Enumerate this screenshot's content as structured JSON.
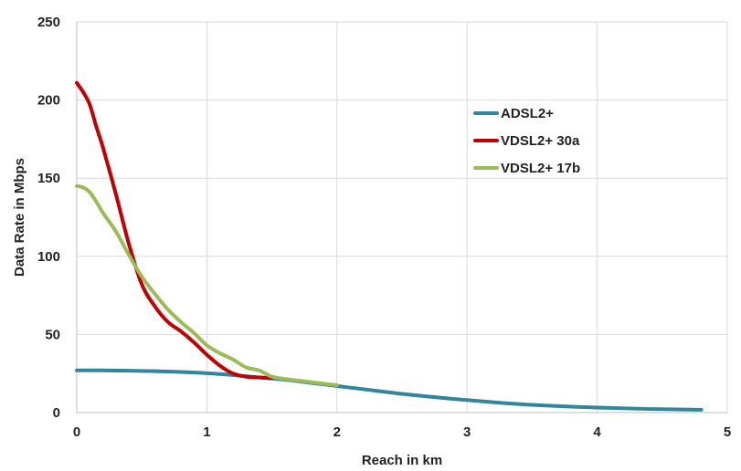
{
  "chart_data": {
    "type": "line",
    "title": "",
    "xlabel": "Reach in km",
    "ylabel": "Data Rate in Mbps",
    "xlim": [
      0,
      5
    ],
    "ylim": [
      0,
      250
    ],
    "xticks": [
      0,
      1,
      2,
      3,
      4,
      5
    ],
    "yticks": [
      0,
      50,
      100,
      150,
      200,
      250
    ],
    "grid": true,
    "legend_position": "upper right",
    "series": [
      {
        "name": "ADSL2+",
        "color": "#31859c",
        "x": [
          0,
          0.2,
          0.4,
          0.6,
          0.8,
          1.0,
          1.2,
          1.4,
          1.6,
          1.8,
          2.0,
          2.2,
          2.5,
          2.8,
          3.0,
          3.3,
          3.6,
          4.0,
          4.4,
          4.8
        ],
        "y": [
          27,
          27,
          26.8,
          26.5,
          26,
          25.2,
          24,
          22.5,
          21,
          19,
          17,
          15,
          12,
          9.5,
          8,
          6,
          4.5,
          3.2,
          2.3,
          1.8
        ]
      },
      {
        "name": "VDSL2+ 30a",
        "color": "#c00000",
        "x": [
          0,
          0.05,
          0.1,
          0.15,
          0.2,
          0.3,
          0.4,
          0.5,
          0.6,
          0.7,
          0.8,
          0.9,
          1.0,
          1.1,
          1.2,
          1.3,
          1.4,
          1.5
        ],
        "y": [
          211,
          205,
          197,
          183,
          170,
          140,
          108,
          82,
          68,
          58,
          52,
          45,
          37,
          30,
          25,
          23,
          22.5,
          22
        ]
      },
      {
        "name": "VDSL2+ 17b",
        "color": "#9bbb59",
        "x": [
          0,
          0.05,
          0.1,
          0.15,
          0.2,
          0.3,
          0.4,
          0.5,
          0.6,
          0.7,
          0.8,
          0.9,
          1.0,
          1.1,
          1.2,
          1.3,
          1.4,
          1.5,
          1.6,
          1.7,
          1.8,
          1.9,
          2.0
        ],
        "y": [
          145,
          144,
          141,
          135,
          128,
          116,
          101,
          87,
          76,
          66,
          58,
          51,
          43,
          38,
          34,
          29,
          27,
          23,
          21.5,
          20.5,
          19.5,
          18.5,
          17.5
        ]
      }
    ]
  }
}
